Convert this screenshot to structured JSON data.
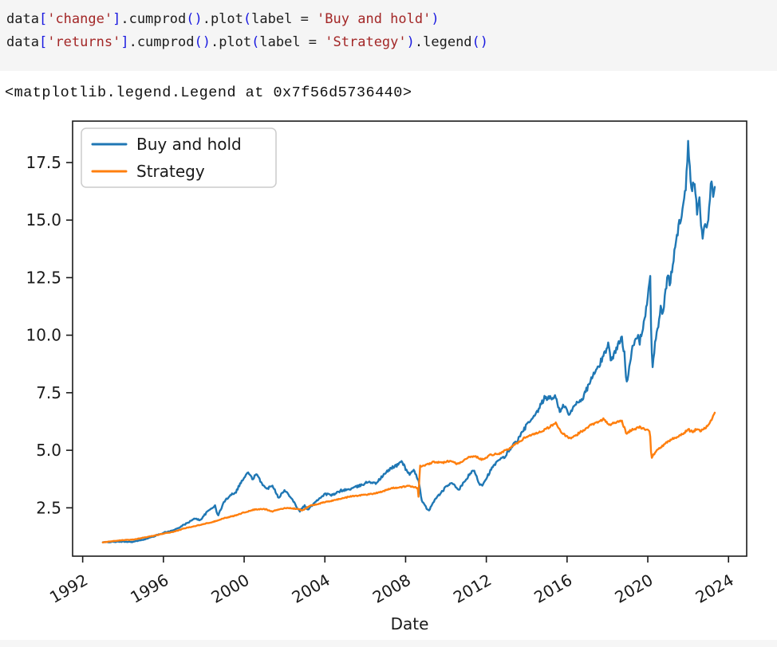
{
  "code_cell": {
    "background": "#f5f5f5",
    "lines": [
      [
        [
          "data",
          "plain"
        ],
        [
          "[",
          "bracket"
        ],
        [
          "'change'",
          "string"
        ],
        [
          "]",
          "bracket"
        ],
        [
          ".cumprod",
          "plain"
        ],
        [
          "()",
          "bracket"
        ],
        [
          ".plot",
          "plain"
        ],
        [
          "(",
          "bracket"
        ],
        [
          "label = ",
          "plain"
        ],
        [
          "'Buy and hold'",
          "string"
        ],
        [
          ")",
          "bracket"
        ]
      ],
      [
        [
          "data",
          "plain"
        ],
        [
          "[",
          "bracket"
        ],
        [
          "'returns'",
          "string"
        ],
        [
          "]",
          "bracket"
        ],
        [
          ".cumprod",
          "plain"
        ],
        [
          "()",
          "bracket"
        ],
        [
          ".plot",
          "plain"
        ],
        [
          "(",
          "bracket"
        ],
        [
          "label = ",
          "plain"
        ],
        [
          "'Strategy'",
          "string"
        ],
        [
          ")",
          "bracket"
        ],
        [
          ".legend",
          "plain"
        ],
        [
          "()",
          "bracket"
        ]
      ]
    ]
  },
  "output_text": "<matplotlib.legend.Legend at 0x7f56d5736440>",
  "chart_data": {
    "type": "line",
    "title": "",
    "xlabel": "Date",
    "ylabel": "",
    "grid": false,
    "legend_position": "upper left",
    "xlim": [
      1991.5,
      2024.9
    ],
    "ylim": [
      0.4,
      19.3
    ],
    "x_ticks": [
      1992,
      1996,
      2000,
      2004,
      2008,
      2012,
      2016,
      2020,
      2024
    ],
    "y_ticks": [
      2.5,
      5.0,
      7.5,
      10.0,
      12.5,
      15.0,
      17.5
    ],
    "x_tick_rotation": -30,
    "axis_color": "#1a1a1a",
    "series": [
      {
        "name": "Buy and hold",
        "color": "#1f77b4",
        "noise": 0.015,
        "points": [
          [
            1993.0,
            1.0
          ],
          [
            1993.5,
            1.02
          ],
          [
            1994.0,
            1.03
          ],
          [
            1994.5,
            1.02
          ],
          [
            1995.0,
            1.12
          ],
          [
            1995.5,
            1.25
          ],
          [
            1996.0,
            1.42
          ],
          [
            1996.5,
            1.52
          ],
          [
            1997.0,
            1.75
          ],
          [
            1997.3,
            1.9
          ],
          [
            1997.6,
            2.05
          ],
          [
            1997.8,
            1.95
          ],
          [
            1998.2,
            2.35
          ],
          [
            1998.55,
            2.6
          ],
          [
            1998.7,
            2.15
          ],
          [
            1999.0,
            2.75
          ],
          [
            1999.3,
            3.05
          ],
          [
            1999.6,
            3.2
          ],
          [
            1999.8,
            3.55
          ],
          [
            2000.2,
            4.05
          ],
          [
            2000.4,
            3.75
          ],
          [
            2000.6,
            3.95
          ],
          [
            2000.9,
            3.55
          ],
          [
            2001.1,
            3.3
          ],
          [
            2001.4,
            3.5
          ],
          [
            2001.7,
            2.95
          ],
          [
            2002.0,
            3.25
          ],
          [
            2002.3,
            3.0
          ],
          [
            2002.6,
            2.55
          ],
          [
            2002.75,
            2.35
          ],
          [
            2003.0,
            2.6
          ],
          [
            2003.15,
            2.4
          ],
          [
            2003.5,
            2.75
          ],
          [
            2004.0,
            3.1
          ],
          [
            2004.4,
            3.05
          ],
          [
            2004.8,
            3.25
          ],
          [
            2005.2,
            3.3
          ],
          [
            2005.7,
            3.45
          ],
          [
            2006.2,
            3.65
          ],
          [
            2006.5,
            3.55
          ],
          [
            2007.0,
            4.0
          ],
          [
            2007.3,
            4.25
          ],
          [
            2007.6,
            4.35
          ],
          [
            2007.8,
            4.55
          ],
          [
            2008.0,
            4.2
          ],
          [
            2008.2,
            3.95
          ],
          [
            2008.4,
            4.1
          ],
          [
            2008.65,
            3.7
          ],
          [
            2008.8,
            2.8
          ],
          [
            2008.95,
            2.6
          ],
          [
            2009.15,
            2.35
          ],
          [
            2009.4,
            2.8
          ],
          [
            2009.8,
            3.2
          ],
          [
            2010.1,
            3.5
          ],
          [
            2010.4,
            3.55
          ],
          [
            2010.6,
            3.25
          ],
          [
            2010.9,
            3.6
          ],
          [
            2011.2,
            4.0
          ],
          [
            2011.4,
            4.1
          ],
          [
            2011.65,
            3.55
          ],
          [
            2011.8,
            3.5
          ],
          [
            2012.1,
            3.95
          ],
          [
            2012.3,
            4.25
          ],
          [
            2012.6,
            4.55
          ],
          [
            2012.9,
            4.7
          ],
          [
            2013.2,
            5.1
          ],
          [
            2013.6,
            5.5
          ],
          [
            2014.0,
            6.1
          ],
          [
            2014.4,
            6.45
          ],
          [
            2014.9,
            7.3
          ],
          [
            2015.2,
            7.25
          ],
          [
            2015.45,
            7.35
          ],
          [
            2015.65,
            6.6
          ],
          [
            2015.85,
            7.0
          ],
          [
            2016.1,
            6.5
          ],
          [
            2016.4,
            7.0
          ],
          [
            2016.8,
            7.3
          ],
          [
            2017.2,
            8.1
          ],
          [
            2017.6,
            8.7
          ],
          [
            2017.9,
            9.3
          ],
          [
            2018.05,
            9.7
          ],
          [
            2018.15,
            8.9
          ],
          [
            2018.4,
            9.3
          ],
          [
            2018.7,
            9.9
          ],
          [
            2018.85,
            9.2
          ],
          [
            2018.95,
            7.9
          ],
          [
            2019.2,
            9.3
          ],
          [
            2019.5,
            10.0
          ],
          [
            2019.6,
            9.7
          ],
          [
            2019.9,
            11.0
          ],
          [
            2020.12,
            12.4
          ],
          [
            2020.16,
            10.5
          ],
          [
            2020.22,
            8.5
          ],
          [
            2020.35,
            9.6
          ],
          [
            2020.5,
            10.3
          ],
          [
            2020.65,
            11.2
          ],
          [
            2020.75,
            11.0
          ],
          [
            2021.0,
            12.6
          ],
          [
            2021.1,
            12.2
          ],
          [
            2021.3,
            13.5
          ],
          [
            2021.5,
            14.6
          ],
          [
            2021.65,
            15.2
          ],
          [
            2021.8,
            15.9
          ],
          [
            2021.9,
            16.5
          ],
          [
            2022.0,
            18.6
          ],
          [
            2022.05,
            17.8
          ],
          [
            2022.15,
            16.3
          ],
          [
            2022.3,
            16.9
          ],
          [
            2022.45,
            15.2
          ],
          [
            2022.55,
            16.0
          ],
          [
            2022.7,
            14.2
          ],
          [
            2022.85,
            15.1
          ],
          [
            2022.95,
            14.5
          ],
          [
            2023.05,
            15.9
          ],
          [
            2023.15,
            16.6
          ],
          [
            2023.25,
            16.0
          ],
          [
            2023.35,
            16.4
          ]
        ]
      },
      {
        "name": "Strategy",
        "color": "#ff7f0e",
        "noise": 0.008,
        "points": [
          [
            1993.0,
            1.0
          ],
          [
            1993.5,
            1.05
          ],
          [
            1994.0,
            1.1
          ],
          [
            1994.5,
            1.12
          ],
          [
            1995.0,
            1.2
          ],
          [
            1995.5,
            1.28
          ],
          [
            1996.0,
            1.38
          ],
          [
            1996.5,
            1.45
          ],
          [
            1997.0,
            1.6
          ],
          [
            1997.5,
            1.7
          ],
          [
            1998.0,
            1.8
          ],
          [
            1998.5,
            1.9
          ],
          [
            1999.0,
            2.05
          ],
          [
            1999.5,
            2.15
          ],
          [
            2000.0,
            2.3
          ],
          [
            2000.5,
            2.42
          ],
          [
            2001.0,
            2.45
          ],
          [
            2001.4,
            2.35
          ],
          [
            2001.8,
            2.45
          ],
          [
            2002.2,
            2.5
          ],
          [
            2002.6,
            2.45
          ],
          [
            2002.9,
            2.4
          ],
          [
            2003.3,
            2.6
          ],
          [
            2003.8,
            2.7
          ],
          [
            2004.3,
            2.8
          ],
          [
            2004.8,
            2.9
          ],
          [
            2005.3,
            3.0
          ],
          [
            2005.8,
            3.05
          ],
          [
            2006.3,
            3.1
          ],
          [
            2006.8,
            3.2
          ],
          [
            2007.3,
            3.35
          ],
          [
            2007.8,
            3.4
          ],
          [
            2008.2,
            3.45
          ],
          [
            2008.5,
            3.4
          ],
          [
            2008.6,
            3.35
          ],
          [
            2008.65,
            2.9
          ],
          [
            2008.7,
            4.3
          ],
          [
            2009.0,
            4.35
          ],
          [
            2009.4,
            4.5
          ],
          [
            2009.8,
            4.45
          ],
          [
            2010.2,
            4.55
          ],
          [
            2010.6,
            4.4
          ],
          [
            2011.0,
            4.65
          ],
          [
            2011.4,
            4.75
          ],
          [
            2011.8,
            4.6
          ],
          [
            2012.2,
            4.8
          ],
          [
            2012.6,
            4.85
          ],
          [
            2013.0,
            5.0
          ],
          [
            2013.5,
            5.3
          ],
          [
            2014.0,
            5.6
          ],
          [
            2014.5,
            5.75
          ],
          [
            2014.9,
            5.9
          ],
          [
            2015.2,
            6.05
          ],
          [
            2015.45,
            6.2
          ],
          [
            2015.7,
            5.8
          ],
          [
            2015.95,
            5.6
          ],
          [
            2016.2,
            5.5
          ],
          [
            2016.6,
            5.75
          ],
          [
            2017.0,
            6.0
          ],
          [
            2017.4,
            6.2
          ],
          [
            2017.8,
            6.35
          ],
          [
            2018.1,
            6.1
          ],
          [
            2018.4,
            6.2
          ],
          [
            2018.7,
            6.3
          ],
          [
            2018.95,
            5.7
          ],
          [
            2019.2,
            5.9
          ],
          [
            2019.6,
            6.0
          ],
          [
            2019.9,
            5.9
          ],
          [
            2020.1,
            5.85
          ],
          [
            2020.18,
            4.65
          ],
          [
            2020.35,
            4.9
          ],
          [
            2020.6,
            5.1
          ],
          [
            2020.9,
            5.3
          ],
          [
            2021.2,
            5.5
          ],
          [
            2021.5,
            5.6
          ],
          [
            2021.8,
            5.75
          ],
          [
            2022.0,
            5.9
          ],
          [
            2022.2,
            5.8
          ],
          [
            2022.4,
            5.9
          ],
          [
            2022.6,
            5.85
          ],
          [
            2022.8,
            5.95
          ],
          [
            2023.0,
            6.1
          ],
          [
            2023.15,
            6.3
          ],
          [
            2023.25,
            6.5
          ],
          [
            2023.35,
            6.7
          ]
        ]
      }
    ]
  }
}
